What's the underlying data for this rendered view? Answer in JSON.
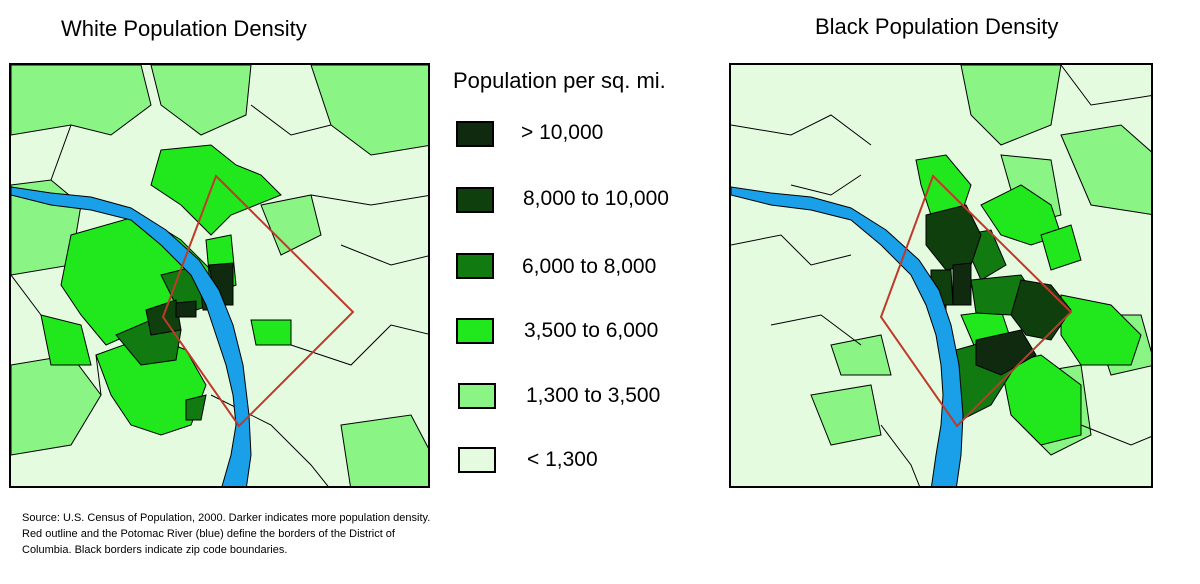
{
  "titles": {
    "white": "White Population Density",
    "black": "Black Population Density"
  },
  "legend": {
    "title": "Population per sq. mi.",
    "items": [
      {
        "label": "> 10,000",
        "color": "#0f2a0e"
      },
      {
        "label": "8,000 to 10,000",
        "color": "#0e3f0c"
      },
      {
        "label": "6,000 to 8,000",
        "color": "#117a10"
      },
      {
        "label": "3,500 to 6,000",
        "color": "#21e81d"
      },
      {
        "label": "1,300 to 3,500",
        "color": "#8af585"
      },
      {
        "label": "< 1,300",
        "color": "#e4fbe0"
      }
    ]
  },
  "source_note": "Source: U.S. Census of Population, 2000.  Darker indicates more population density.  Red outline and the Potomac River (blue) define the borders of the District of Columbia.  Black borders indicate zip code boundaries.",
  "colors": {
    "dc_outline": "#c0392b",
    "river": "#1aa0e8",
    "boundary": "#000000"
  }
}
